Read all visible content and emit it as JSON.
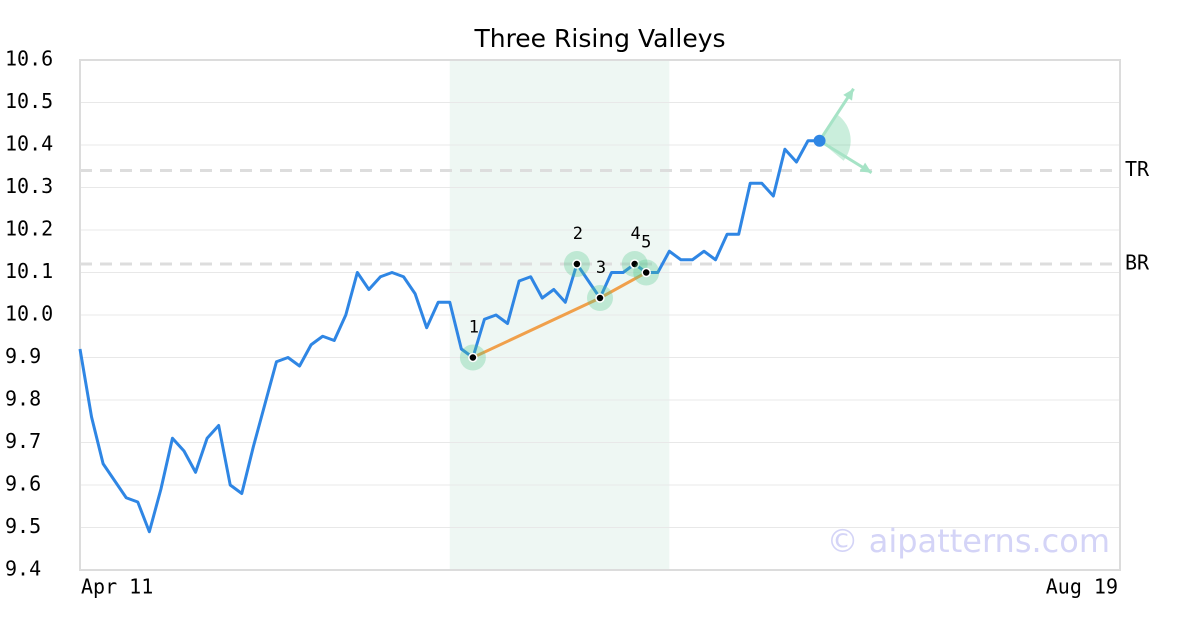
{
  "chart_data": {
    "type": "line",
    "title": "Three Rising Valleys",
    "x": [
      0,
      1,
      2,
      3,
      4,
      5,
      6,
      7,
      8,
      9,
      10,
      11,
      12,
      13,
      14,
      15,
      16,
      17,
      18,
      19,
      20,
      21,
      22,
      23,
      24,
      25,
      26,
      27,
      28,
      29,
      30,
      31,
      32,
      33,
      34,
      35,
      36,
      37,
      38,
      39,
      40,
      41,
      42,
      43,
      44,
      45,
      46,
      47,
      48,
      49,
      50,
      51,
      52,
      53,
      54,
      55,
      56,
      57,
      58,
      59,
      60,
      61,
      62,
      63,
      64
    ],
    "values": [
      9.92,
      9.76,
      9.65,
      9.61,
      9.57,
      9.56,
      9.49,
      9.59,
      9.71,
      9.68,
      9.63,
      9.71,
      9.74,
      9.6,
      9.58,
      9.69,
      9.79,
      9.89,
      9.9,
      9.88,
      9.93,
      9.95,
      9.94,
      10.0,
      10.1,
      10.06,
      10.09,
      10.1,
      10.09,
      10.05,
      9.97,
      10.03,
      10.03,
      9.92,
      9.9,
      9.99,
      10.0,
      9.98,
      10.08,
      10.09,
      10.04,
      10.06,
      10.03,
      10.12,
      10.08,
      10.04,
      10.1,
      10.1,
      10.12,
      10.1,
      10.1,
      10.15,
      10.13,
      10.13,
      10.15,
      10.13,
      10.19,
      10.19,
      10.31,
      10.31,
      10.28,
      10.39,
      10.36,
      10.41,
      10.41
    ],
    "color": "#2f86e4",
    "xlim": [
      0,
      90
    ],
    "xticks": [
      {
        "value": 0,
        "label": "Apr 11"
      },
      {
        "value": 90,
        "label": "Aug 19"
      }
    ],
    "ylim": [
      9.4,
      10.6
    ],
    "yticks": [
      9.4,
      9.5,
      9.6,
      9.7,
      9.8,
      9.9,
      {
        "value": 10,
        "label": "10.0"
      },
      10.1,
      10.2,
      10.3,
      10.4,
      10.5,
      10.6
    ],
    "grid": true,
    "pattern_region": [
      32,
      51
    ],
    "pattern_points": [
      {
        "label": "1",
        "x": 34,
        "y": 9.9
      },
      {
        "label": "2",
        "x": 43,
        "y": 10.12
      },
      {
        "label": "3",
        "x": 45,
        "y": 10.04
      },
      {
        "label": "4",
        "x": 48,
        "y": 10.12
      },
      {
        "label": "5",
        "x": 49,
        "y": 10.1
      }
    ],
    "trend_color": "#f0a04b",
    "levels": [
      {
        "name": "TR",
        "value": 10.34
      },
      {
        "name": "BR",
        "value": 10.12
      }
    ],
    "watermark": "© aipatterns.com"
  }
}
